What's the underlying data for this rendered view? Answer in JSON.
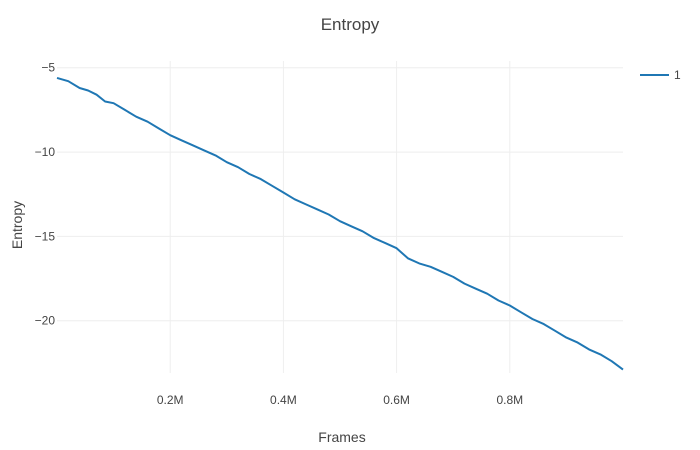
{
  "chart_data": {
    "type": "line",
    "title": "Entropy",
    "xlabel": "Frames",
    "ylabel": "Entropy",
    "xlim": [
      0,
      1000000
    ],
    "ylim": [
      -23.1,
      -4.6
    ],
    "x_ticks": [
      {
        "value": 200000,
        "label": "0.2M"
      },
      {
        "value": 400000,
        "label": "0.4M"
      },
      {
        "value": 600000,
        "label": "0.6M"
      },
      {
        "value": 800000,
        "label": "0.8M"
      }
    ],
    "y_ticks": [
      {
        "value": -5,
        "label": "−5"
      },
      {
        "value": -10,
        "label": "−10"
      },
      {
        "value": -15,
        "label": "−15"
      },
      {
        "value": -20,
        "label": "−20"
      }
    ],
    "grid": true,
    "legend_position": "top-right",
    "series": [
      {
        "name": "1",
        "color": "#1f77b4",
        "x": [
          0,
          20000,
          40000,
          55000,
          70000,
          85000,
          100000,
          120000,
          140000,
          160000,
          180000,
          200000,
          220000,
          240000,
          260000,
          280000,
          300000,
          320000,
          340000,
          360000,
          380000,
          400000,
          420000,
          440000,
          460000,
          480000,
          500000,
          520000,
          540000,
          560000,
          580000,
          600000,
          620000,
          640000,
          660000,
          680000,
          700000,
          720000,
          740000,
          760000,
          780000,
          800000,
          820000,
          840000,
          860000,
          880000,
          900000,
          920000,
          940000,
          960000,
          980000,
          1000000
        ],
        "values": [
          -5.6,
          -5.8,
          -6.2,
          -6.35,
          -6.6,
          -7.0,
          -7.1,
          -7.5,
          -7.9,
          -8.2,
          -8.6,
          -9.0,
          -9.3,
          -9.6,
          -9.9,
          -10.2,
          -10.6,
          -10.9,
          -11.3,
          -11.6,
          -12.0,
          -12.4,
          -12.8,
          -13.1,
          -13.4,
          -13.7,
          -14.1,
          -14.4,
          -14.7,
          -15.1,
          -15.4,
          -15.7,
          -16.3,
          -16.6,
          -16.8,
          -17.1,
          -17.4,
          -17.8,
          -18.1,
          -18.4,
          -18.8,
          -19.1,
          -19.5,
          -19.9,
          -20.2,
          -20.6,
          -21.0,
          -21.3,
          -21.7,
          -22.0,
          -22.4,
          -22.9
        ]
      }
    ]
  }
}
